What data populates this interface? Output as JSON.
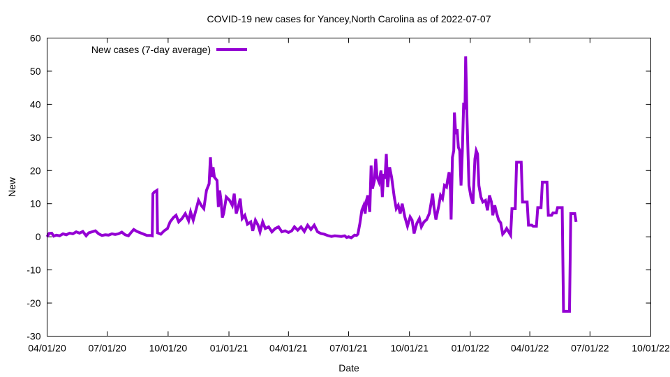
{
  "chart_data": {
    "type": "line",
    "title": "COVID-19 new cases for Yancey,North Carolina as of 2022-07-07",
    "xlabel": "Date",
    "ylabel": "New",
    "x_axis_type": "date",
    "xlim": [
      "2020-04-01",
      "2022-10-01"
    ],
    "ylim": [
      -30,
      60
    ],
    "x_tick_labels": [
      "04/01/20",
      "07/01/20",
      "10/01/20",
      "01/01/21",
      "04/01/21",
      "07/01/21",
      "10/01/21",
      "01/01/22",
      "04/01/22",
      "07/01/22",
      "10/01/22"
    ],
    "y_tick_labels": [
      "-30",
      "-20",
      "-10",
      "0",
      "10",
      "20",
      "30",
      "40",
      "50",
      "60"
    ],
    "grid": false,
    "legend_position": "top-left",
    "series": [
      {
        "name": "New cases (7-day average)",
        "color": "#9400d3",
        "points": [
          [
            "2020-04-01",
            0.0
          ],
          [
            "2020-04-04",
            1.0
          ],
          [
            "2020-04-08",
            1.1
          ],
          [
            "2020-04-11",
            0.2
          ],
          [
            "2020-04-15",
            0.5
          ],
          [
            "2020-04-20",
            0.3
          ],
          [
            "2020-04-25",
            0.9
          ],
          [
            "2020-04-30",
            0.6
          ],
          [
            "2020-05-05",
            1.1
          ],
          [
            "2020-05-10",
            0.9
          ],
          [
            "2020-05-15",
            1.5
          ],
          [
            "2020-05-20",
            1.1
          ],
          [
            "2020-05-25",
            1.6
          ],
          [
            "2020-05-30",
            0.3
          ],
          [
            "2020-06-03",
            1.2
          ],
          [
            "2020-06-08",
            1.5
          ],
          [
            "2020-06-13",
            1.8
          ],
          [
            "2020-06-18",
            0.9
          ],
          [
            "2020-06-23",
            0.4
          ],
          [
            "2020-06-28",
            0.6
          ],
          [
            "2020-07-03",
            0.5
          ],
          [
            "2020-07-08",
            0.9
          ],
          [
            "2020-07-13",
            0.7
          ],
          [
            "2020-07-18",
            0.9
          ],
          [
            "2020-07-23",
            1.4
          ],
          [
            "2020-07-28",
            0.6
          ],
          [
            "2020-08-02",
            0.3
          ],
          [
            "2020-08-06",
            1.3
          ],
          [
            "2020-08-10",
            2.2
          ],
          [
            "2020-08-15",
            1.6
          ],
          [
            "2020-08-20",
            1.2
          ],
          [
            "2020-08-25",
            0.8
          ],
          [
            "2020-08-30",
            0.4
          ],
          [
            "2020-09-05",
            0.4
          ],
          [
            "2020-09-07",
            0.3
          ],
          [
            "2020-09-08",
            13.0
          ],
          [
            "2020-09-10",
            13.5
          ],
          [
            "2020-09-14",
            14.0
          ],
          [
            "2020-09-15",
            1.2
          ],
          [
            "2020-09-20",
            0.8
          ],
          [
            "2020-09-25",
            1.8
          ],
          [
            "2020-09-30",
            2.5
          ],
          [
            "2020-10-04",
            4.5
          ],
          [
            "2020-10-09",
            5.8
          ],
          [
            "2020-10-13",
            6.5
          ],
          [
            "2020-10-17",
            4.5
          ],
          [
            "2020-10-22",
            5.5
          ],
          [
            "2020-10-27",
            7.0
          ],
          [
            "2020-11-01",
            4.8
          ],
          [
            "2020-11-04",
            7.5
          ],
          [
            "2020-11-08",
            5.0
          ],
          [
            "2020-11-12",
            8.0
          ],
          [
            "2020-11-16",
            11.0
          ],
          [
            "2020-11-20",
            9.5
          ],
          [
            "2020-11-24",
            8.5
          ],
          [
            "2020-11-28",
            14.0
          ],
          [
            "2020-12-02",
            16.0
          ],
          [
            "2020-12-04",
            24.0
          ],
          [
            "2020-12-06",
            18.0
          ],
          [
            "2020-12-08",
            21.0
          ],
          [
            "2020-12-10",
            18.0
          ],
          [
            "2020-12-14",
            17.0
          ],
          [
            "2020-12-16",
            9.0
          ],
          [
            "2020-12-18",
            14.0
          ],
          [
            "2020-12-20",
            11.0
          ],
          [
            "2020-12-22",
            5.8
          ],
          [
            "2020-12-24",
            7.0
          ],
          [
            "2020-12-28",
            12.0
          ],
          [
            "2021-01-02",
            11.0
          ],
          [
            "2021-01-06",
            9.5
          ],
          [
            "2021-01-09",
            13.0
          ],
          [
            "2021-01-12",
            7.0
          ],
          [
            "2021-01-15",
            9.0
          ],
          [
            "2021-01-18",
            11.5
          ],
          [
            "2021-01-21",
            5.5
          ],
          [
            "2021-01-25",
            6.5
          ],
          [
            "2021-01-29",
            3.8
          ],
          [
            "2021-02-03",
            4.5
          ],
          [
            "2021-02-06",
            1.8
          ],
          [
            "2021-02-10",
            5.0
          ],
          [
            "2021-02-14",
            3.5
          ],
          [
            "2021-02-17",
            1.5
          ],
          [
            "2021-02-21",
            4.5
          ],
          [
            "2021-02-25",
            2.5
          ],
          [
            "2021-03-02",
            3.0
          ],
          [
            "2021-03-07",
            1.5
          ],
          [
            "2021-03-12",
            2.5
          ],
          [
            "2021-03-17",
            3.0
          ],
          [
            "2021-03-22",
            1.5
          ],
          [
            "2021-03-27",
            1.8
          ],
          [
            "2021-04-01",
            1.3
          ],
          [
            "2021-04-06",
            1.8
          ],
          [
            "2021-04-10",
            3.0
          ],
          [
            "2021-04-15",
            2.0
          ],
          [
            "2021-04-20",
            3.0
          ],
          [
            "2021-04-25",
            1.6
          ],
          [
            "2021-04-30",
            3.5
          ],
          [
            "2021-05-05",
            2.2
          ],
          [
            "2021-05-10",
            3.5
          ],
          [
            "2021-05-15",
            1.5
          ],
          [
            "2021-05-20",
            1.0
          ],
          [
            "2021-05-25",
            0.8
          ],
          [
            "2021-05-30",
            0.4
          ],
          [
            "2021-06-05",
            0.1
          ],
          [
            "2021-06-10",
            0.3
          ],
          [
            "2021-06-15",
            0.2
          ],
          [
            "2021-06-20",
            0.1
          ],
          [
            "2021-06-25",
            0.3
          ],
          [
            "2021-06-28",
            -0.2
          ],
          [
            "2021-07-01",
            0.0
          ],
          [
            "2021-07-05",
            -0.3
          ],
          [
            "2021-07-10",
            0.5
          ],
          [
            "2021-07-13",
            0.4
          ],
          [
            "2021-07-15",
            0.8
          ],
          [
            "2021-07-18",
            4.0
          ],
          [
            "2021-07-21",
            8.0
          ],
          [
            "2021-07-24",
            9.5
          ],
          [
            "2021-07-26",
            7.0
          ],
          [
            "2021-07-28",
            11.0
          ],
          [
            "2021-07-30",
            12.5
          ],
          [
            "2021-08-02",
            7.5
          ],
          [
            "2021-08-04",
            21.5
          ],
          [
            "2021-08-06",
            14.5
          ],
          [
            "2021-08-09",
            17.0
          ],
          [
            "2021-08-11",
            23.5
          ],
          [
            "2021-08-13",
            18.0
          ],
          [
            "2021-08-16",
            16.5
          ],
          [
            "2021-08-19",
            20.0
          ],
          [
            "2021-08-21",
            12.0
          ],
          [
            "2021-08-23",
            19.0
          ],
          [
            "2021-08-25",
            17.5
          ],
          [
            "2021-08-27",
            25.0
          ],
          [
            "2021-08-29",
            15.0
          ],
          [
            "2021-09-01",
            21.0
          ],
          [
            "2021-09-04",
            18.0
          ],
          [
            "2021-09-08",
            12.0
          ],
          [
            "2021-09-11",
            8.5
          ],
          [
            "2021-09-14",
            9.5
          ],
          [
            "2021-09-17",
            7.0
          ],
          [
            "2021-09-20",
            10.0
          ],
          [
            "2021-09-24",
            6.0
          ],
          [
            "2021-09-28",
            3.2
          ],
          [
            "2021-10-02",
            6.0
          ],
          [
            "2021-10-05",
            5.0
          ],
          [
            "2021-10-08",
            1.0
          ],
          [
            "2021-10-12",
            4.0
          ],
          [
            "2021-10-16",
            5.5
          ],
          [
            "2021-10-19",
            3.0
          ],
          [
            "2021-10-23",
            4.5
          ],
          [
            "2021-10-27",
            5.2
          ],
          [
            "2021-10-31",
            7.0
          ],
          [
            "2021-11-03",
            10.5
          ],
          [
            "2021-11-05",
            13.0
          ],
          [
            "2021-11-07",
            9.0
          ],
          [
            "2021-11-10",
            5.2
          ],
          [
            "2021-11-14",
            9.0
          ],
          [
            "2021-11-17",
            12.5
          ],
          [
            "2021-11-20",
            11.5
          ],
          [
            "2021-11-23",
            15.5
          ],
          [
            "2021-11-26",
            15.0
          ],
          [
            "2021-11-28",
            17.5
          ],
          [
            "2021-11-30",
            19.5
          ],
          [
            "2021-12-02",
            14.0
          ],
          [
            "2021-12-03",
            5.2
          ],
          [
            "2021-12-05",
            24.0
          ],
          [
            "2021-12-07",
            26.0
          ],
          [
            "2021-12-08",
            37.5
          ],
          [
            "2021-12-10",
            31.0
          ],
          [
            "2021-12-12",
            32.5
          ],
          [
            "2021-12-14",
            27.0
          ],
          [
            "2021-12-16",
            26.0
          ],
          [
            "2021-12-18",
            15.5
          ],
          [
            "2021-12-20",
            26.0
          ],
          [
            "2021-12-22",
            40.5
          ],
          [
            "2021-12-24",
            38.5
          ],
          [
            "2021-12-25",
            54.5
          ],
          [
            "2021-12-27",
            36.0
          ],
          [
            "2021-12-30",
            15.5
          ],
          [
            "2022-01-02",
            12.0
          ],
          [
            "2022-01-05",
            10.0
          ],
          [
            "2022-01-08",
            23.5
          ],
          [
            "2022-01-10",
            26.0
          ],
          [
            "2022-01-12",
            25.0
          ],
          [
            "2022-01-14",
            15.5
          ],
          [
            "2022-01-17",
            12.0
          ],
          [
            "2022-01-20",
            10.5
          ],
          [
            "2022-01-24",
            11.0
          ],
          [
            "2022-01-27",
            8.0
          ],
          [
            "2022-01-30",
            12.5
          ],
          [
            "2022-02-02",
            10.5
          ],
          [
            "2022-02-04",
            6.5
          ],
          [
            "2022-02-07",
            9.5
          ],
          [
            "2022-02-10",
            7.0
          ],
          [
            "2022-02-13",
            5.0
          ],
          [
            "2022-02-16",
            4.2
          ],
          [
            "2022-02-19",
            0.8
          ],
          [
            "2022-02-22",
            1.5
          ],
          [
            "2022-02-25",
            2.5
          ],
          [
            "2022-02-28",
            1.5
          ],
          [
            "2022-03-03",
            0.5
          ],
          [
            "2022-03-05",
            8.5
          ],
          [
            "2022-03-10",
            8.5
          ],
          [
            "2022-03-12",
            22.5
          ],
          [
            "2022-03-19",
            22.5
          ],
          [
            "2022-03-21",
            10.5
          ],
          [
            "2022-03-28",
            10.5
          ],
          [
            "2022-03-30",
            3.5
          ],
          [
            "2022-04-04",
            3.5
          ],
          [
            "2022-04-06",
            3.2
          ],
          [
            "2022-04-11",
            3.2
          ],
          [
            "2022-04-13",
            8.8
          ],
          [
            "2022-04-18",
            8.8
          ],
          [
            "2022-04-20",
            16.5
          ],
          [
            "2022-04-27",
            16.5
          ],
          [
            "2022-04-29",
            6.5
          ],
          [
            "2022-05-04",
            6.5
          ],
          [
            "2022-05-06",
            7.2
          ],
          [
            "2022-05-11",
            7.2
          ],
          [
            "2022-05-13",
            8.8
          ],
          [
            "2022-05-20",
            8.8
          ],
          [
            "2022-05-22",
            -22.5
          ],
          [
            "2022-05-31",
            -22.5
          ],
          [
            "2022-06-02",
            7.0
          ],
          [
            "2022-06-08",
            7.0
          ],
          [
            "2022-06-10",
            4.5
          ]
        ]
      }
    ]
  }
}
